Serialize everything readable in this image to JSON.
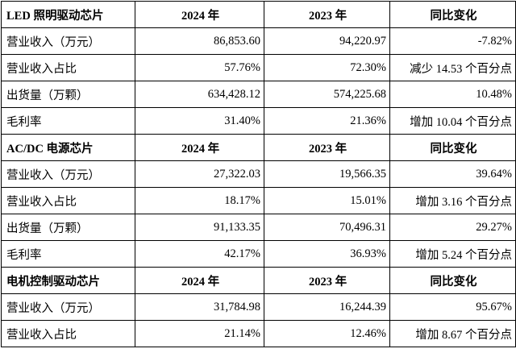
{
  "sections": [
    {
      "header": {
        "name": "LED 照明驱动芯片",
        "y2024": "2024 年",
        "y2023": "2023 年",
        "yoy": "同比变化"
      },
      "rows": [
        {
          "label": "营业收入（万元）",
          "v2024": "86,853.60",
          "v2023": "94,220.97",
          "yoy": "-7.82%"
        },
        {
          "label": "营业收入占比",
          "v2024": "57.76%",
          "v2023": "72.30%",
          "yoy": "减少 14.53 个百分点"
        },
        {
          "label": "出货量（万颗）",
          "v2024": "634,428.12",
          "v2023": "574,225.68",
          "yoy": "10.48%"
        },
        {
          "label": "毛利率",
          "v2024": "31.40%",
          "v2023": "21.36%",
          "yoy": "增加 10.04 个百分点"
        }
      ]
    },
    {
      "header": {
        "name": "AC/DC 电源芯片",
        "y2024": "2024 年",
        "y2023": "2023 年",
        "yoy": "同比变化"
      },
      "rows": [
        {
          "label": "营业收入（万元）",
          "v2024": "27,322.03",
          "v2023": "19,566.35",
          "yoy": "39.64%"
        },
        {
          "label": "营业收入占比",
          "v2024": "18.17%",
          "v2023": "15.01%",
          "yoy": "增加 3.16 个百分点"
        },
        {
          "label": "出货量（万颗）",
          "v2024": "91,133.35",
          "v2023": "70,496.31",
          "yoy": "29.27%"
        },
        {
          "label": "毛利率",
          "v2024": "42.17%",
          "v2023": "36.93%",
          "yoy": "增加 5.24 个百分点"
        }
      ]
    },
    {
      "header": {
        "name": "电机控制驱动芯片",
        "y2024": "2024 年",
        "y2023": "2023 年",
        "yoy": "同比变化"
      },
      "rows": [
        {
          "label": "营业收入（万元）",
          "v2024": "31,784.98",
          "v2023": "16,244.39",
          "yoy": "95.67%"
        },
        {
          "label": "营业收入占比",
          "v2024": "21.14%",
          "v2023": "12.46%",
          "yoy": "增加 8.67 个百分点"
        }
      ]
    }
  ]
}
